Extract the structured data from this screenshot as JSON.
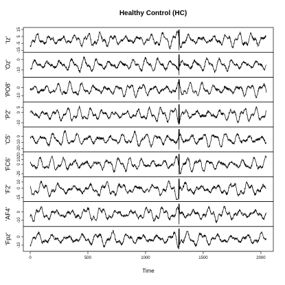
{
  "chart_data": {
    "type": "line",
    "title": "Healthy Control (HC)",
    "xlabel": "Time",
    "xlim": [
      0,
      2048
    ],
    "xticks": [
      0,
      500,
      1000,
      1500,
      2000
    ],
    "samples": 2048,
    "line_color": "#000000",
    "panels": [
      {
        "name": "'Iz'",
        "ylim": [
          -15,
          15
        ],
        "yticks": [
          15,
          5,
          -5,
          -15
        ]
      },
      {
        "name": "'Oz'",
        "ylim": [
          -15,
          5
        ],
        "yticks": [
          0,
          -10
        ]
      },
      {
        "name": "'PO8'",
        "ylim": [
          -15,
          10
        ],
        "yticks": [
          0,
          -10
        ]
      },
      {
        "name": "'P2'",
        "ylim": [
          -12,
          8
        ],
        "yticks": [
          5,
          0,
          -10
        ]
      },
      {
        "name": "'C5'",
        "ylim": [
          -22,
          12
        ],
        "yticks": [
          0,
          -10,
          -20
        ]
      },
      {
        "name": "'FC6'",
        "ylim": [
          -22,
          22
        ],
        "yticks": [
          20,
          10,
          0,
          -20
        ]
      },
      {
        "name": "'F2'",
        "ylim": [
          -18,
          15
        ],
        "yticks": [
          10,
          0,
          -15
        ]
      },
      {
        "name": "'AF4'",
        "ylim": [
          -15,
          10
        ],
        "yticks": [
          0,
          -10
        ]
      },
      {
        "name": "'Fpz'",
        "ylim": [
          -15,
          10
        ],
        "yticks": [
          0,
          -10
        ]
      }
    ]
  }
}
